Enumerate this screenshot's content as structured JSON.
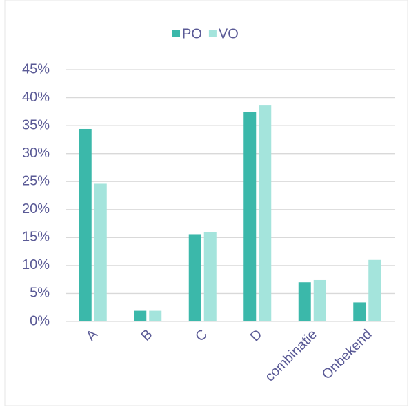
{
  "chart_data": {
    "type": "bar",
    "categories": [
      "A",
      "B",
      "C",
      "D",
      "combinatie",
      "Onbekend"
    ],
    "series": [
      {
        "name": "PO",
        "color": "#3bb8aa",
        "values": [
          34.4,
          1.9,
          15.6,
          37.4,
          7.0,
          3.4
        ]
      },
      {
        "name": "VO",
        "color": "#a4e4dc",
        "values": [
          24.6,
          1.9,
          16.0,
          38.7,
          7.4,
          11.0
        ]
      }
    ],
    "ylim": [
      0,
      45
    ],
    "yticks": [
      {
        "value": 0,
        "label": "0%"
      },
      {
        "value": 5,
        "label": "5%"
      },
      {
        "value": 10,
        "label": "10%"
      },
      {
        "value": 15,
        "label": "15%"
      },
      {
        "value": 20,
        "label": "20%"
      },
      {
        "value": 25,
        "label": "25%"
      },
      {
        "value": 30,
        "label": "30%"
      },
      {
        "value": 35,
        "label": "35%"
      },
      {
        "value": 40,
        "label": "40%"
      },
      {
        "value": 45,
        "label": "45%"
      }
    ],
    "grid": true,
    "legend": "top"
  }
}
